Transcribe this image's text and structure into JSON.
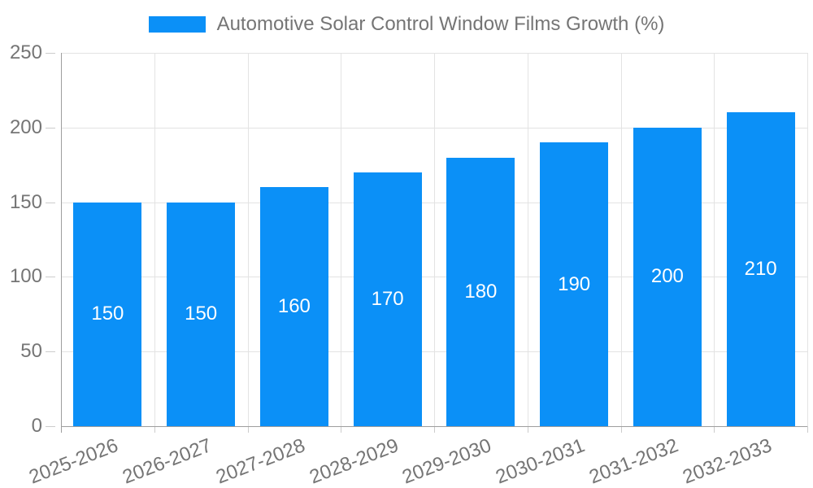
{
  "chart_data": {
    "type": "bar",
    "title": "Automotive Solar Control Window Films Growth (%)",
    "categories": [
      "2025-2026",
      "2026-2027",
      "2027-2028",
      "2028-2029",
      "2029-2030",
      "2030-2031",
      "2031-2032",
      "2032-2033"
    ],
    "values": [
      150,
      150,
      160,
      170,
      180,
      190,
      200,
      210
    ],
    "yticks": [
      0,
      50,
      100,
      150,
      200,
      250
    ],
    "ylim": [
      0,
      250
    ],
    "xlabel": "",
    "ylabel": "",
    "grid": true,
    "legend_position": "top-center",
    "bar_label_position": "inside-center",
    "colors": {
      "bar": "#0b90f7",
      "bar_label": "#ffffff",
      "axis_line": "#9e9e9e",
      "tick_mark": "#cccccc",
      "gridline": "#e3e3e3",
      "text": "#757575",
      "background": "#ffffff"
    }
  }
}
